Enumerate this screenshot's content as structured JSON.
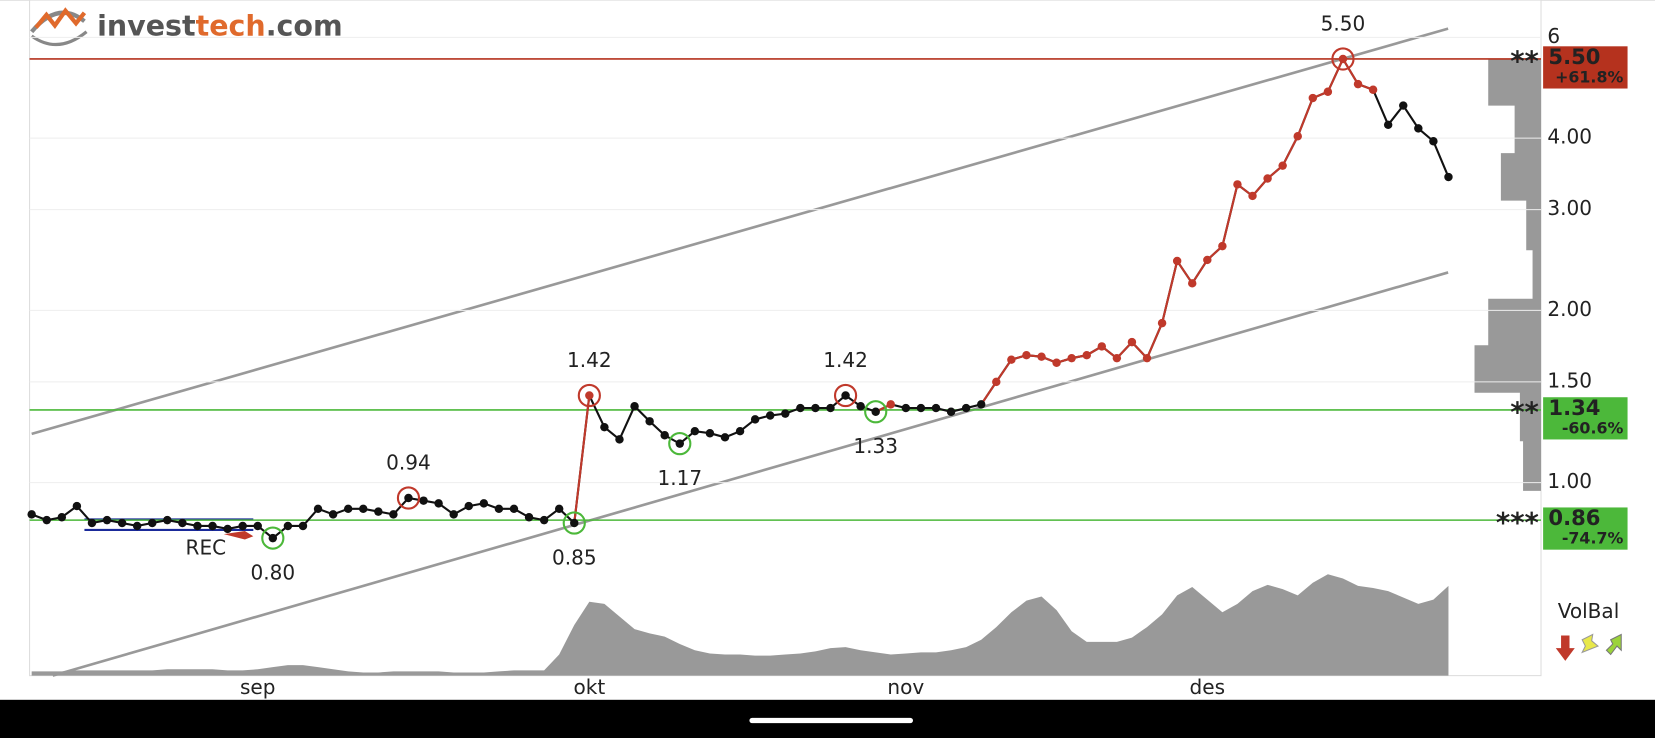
{
  "logo": [
    "invest",
    "tech",
    ".com"
  ],
  "chart_data": {
    "type": "line",
    "categories": [
      null,
      null,
      null,
      null,
      null,
      null,
      null,
      null,
      null,
      null,
      null,
      null,
      null,
      null,
      null,
      "sep",
      null,
      null,
      null,
      null,
      null,
      null,
      null,
      null,
      null,
      null,
      null,
      null,
      null,
      null,
      null,
      null,
      null,
      null,
      null,
      null,
      null,
      "okt",
      null,
      null,
      null,
      null,
      null,
      null,
      null,
      null,
      null,
      null,
      null,
      null,
      null,
      null,
      null,
      null,
      null,
      null,
      null,
      null,
      "nov",
      null,
      null,
      null,
      null,
      null,
      null,
      null,
      null,
      null,
      null,
      null,
      null,
      null,
      null,
      null,
      null,
      null,
      null,
      null,
      "des",
      null,
      null,
      null,
      null,
      null,
      null,
      null,
      null,
      null,
      null,
      null,
      null,
      null,
      null,
      null,
      null
    ],
    "series": [
      {
        "values": [
          0.88,
          0.86,
          0.87,
          0.91,
          0.85,
          0.86,
          0.85,
          0.84,
          0.85,
          0.86,
          0.85,
          0.84,
          0.84,
          0.83,
          0.84,
          0.84,
          0.8,
          0.84,
          0.84,
          0.9,
          0.88,
          0.9,
          0.9,
          0.89,
          0.88,
          0.94,
          0.93,
          0.92,
          0.88,
          0.91,
          0.92,
          0.9,
          0.9,
          0.87,
          0.86,
          0.9,
          0.85,
          1.42,
          1.25,
          1.19,
          1.36,
          1.28,
          1.21,
          1.17,
          1.23,
          1.22,
          1.2,
          1.23,
          1.29,
          1.31,
          1.32,
          1.35,
          1.35,
          1.35,
          1.42,
          1.36,
          1.33,
          1.37,
          1.35,
          1.35,
          1.35,
          1.33,
          1.35,
          1.37,
          1.5,
          1.64,
          1.67,
          1.66,
          1.62,
          1.65,
          1.67,
          1.73,
          1.65,
          1.76,
          1.65,
          1.9,
          2.44,
          2.23,
          2.45,
          2.59,
          3.32,
          3.17,
          3.4,
          3.58,
          4.03,
          4.7,
          4.82,
          5.5,
          4.97,
          4.86,
          4.22,
          4.56,
          4.16,
          3.95,
          3.42
        ],
        "colors": [
          "#111",
          "#111",
          "#111",
          "#111",
          "#111",
          "#111",
          "#111",
          "#111",
          "#111",
          "#111",
          "#111",
          "#111",
          "#111",
          "#111",
          "#111",
          "#111",
          "#111",
          "#111",
          "#111",
          "#111",
          "#111",
          "#111",
          "#111",
          "#111",
          "#111",
          "#111",
          "#111",
          "#111",
          "#111",
          "#111",
          "#111",
          "#111",
          "#111",
          "#111",
          "#111",
          "#111",
          "#111",
          "#c0392b",
          "#111",
          "#111",
          "#111",
          "#111",
          "#111",
          "#111",
          "#111",
          "#111",
          "#111",
          "#111",
          "#111",
          "#111",
          "#111",
          "#111",
          "#111",
          "#111",
          "#111",
          "#111",
          "#111",
          "#c0392b",
          "#111",
          "#111",
          "#111",
          "#111",
          "#111",
          "#111",
          "#c0392b",
          "#c0392b",
          "#c0392b",
          "#c0392b",
          "#c0392b",
          "#c0392b",
          "#c0392b",
          "#c0392b",
          "#c0392b",
          "#c0392b",
          "#c0392b",
          "#c0392b",
          "#c0392b",
          "#c0392b",
          "#c0392b",
          "#c0392b",
          "#c0392b",
          "#c0392b",
          "#c0392b",
          "#c0392b",
          "#c0392b",
          "#c0392b",
          "#c0392b",
          "#c0392b",
          "#c0392b",
          "#c0392b",
          "#111",
          "#111",
          "#111",
          "#111",
          "#111"
        ]
      }
    ],
    "log_scale": true,
    "ylim": [
      0.46,
      6.97
    ],
    "yticks": [
      {
        "value": 1,
        "label": "1.00"
      },
      {
        "value": 1.5,
        "label": "1.50"
      },
      {
        "value": 2,
        "label": "2.00"
      },
      {
        "value": 3,
        "label": "3.00"
      },
      {
        "value": 4,
        "label": "4.00"
      },
      6
    ],
    "grid": true,
    "annotations": [
      {
        "label": "5.50",
        "point": 87,
        "kind": "high"
      },
      {
        "label": "1.42",
        "point": 37,
        "kind": "high"
      },
      {
        "label": "0.94",
        "point": 25,
        "kind": "high"
      },
      {
        "label": "1.42",
        "point": 54,
        "kind": "high"
      },
      {
        "label": "1.17",
        "point": 43,
        "kind": "low"
      },
      {
        "label": "1.33",
        "point": 56,
        "kind": "low"
      },
      {
        "label": "0.85",
        "point": 36,
        "kind": "low"
      },
      {
        "label": "0.80",
        "point": 16,
        "kind": "low"
      }
    ],
    "levels": [
      {
        "value": 5.5,
        "label": "5.50",
        "change": "+61.8%",
        "stars": "**",
        "color": "#b5321e"
      },
      {
        "value": 1.34,
        "label": "1.34",
        "change": "-60.6%",
        "stars": "**",
        "color": "#4cb83a"
      },
      {
        "value": 0.86,
        "label": "0.86",
        "change": "-74.7%",
        "stars": "***",
        "color": "#4cb83a"
      }
    ],
    "signal_label": "REC",
    "volume_title": "VolBal",
    "volume_ylim": [
      0,
      100
    ],
    "volume_values": [
      4,
      4,
      4,
      5,
      5,
      5,
      5,
      5,
      5,
      6,
      6,
      6,
      6,
      5,
      5,
      6,
      8,
      10,
      10,
      8,
      6,
      4,
      3,
      3,
      4,
      4,
      4,
      4,
      3,
      3,
      3,
      4,
      5,
      5,
      5,
      20,
      48,
      70,
      68,
      56,
      44,
      40,
      37,
      30,
      24,
      21,
      20,
      20,
      19,
      19,
      20,
      21,
      23,
      26,
      27,
      24,
      22,
      20,
      21,
      22,
      22,
      24,
      27,
      34,
      46,
      60,
      71,
      75,
      62,
      42,
      32,
      32,
      32,
      36,
      46,
      58,
      76,
      84,
      72,
      60,
      68,
      80,
      86,
      82,
      76,
      88,
      96,
      92,
      85,
      83,
      80,
      74,
      68,
      72,
      85
    ]
  }
}
